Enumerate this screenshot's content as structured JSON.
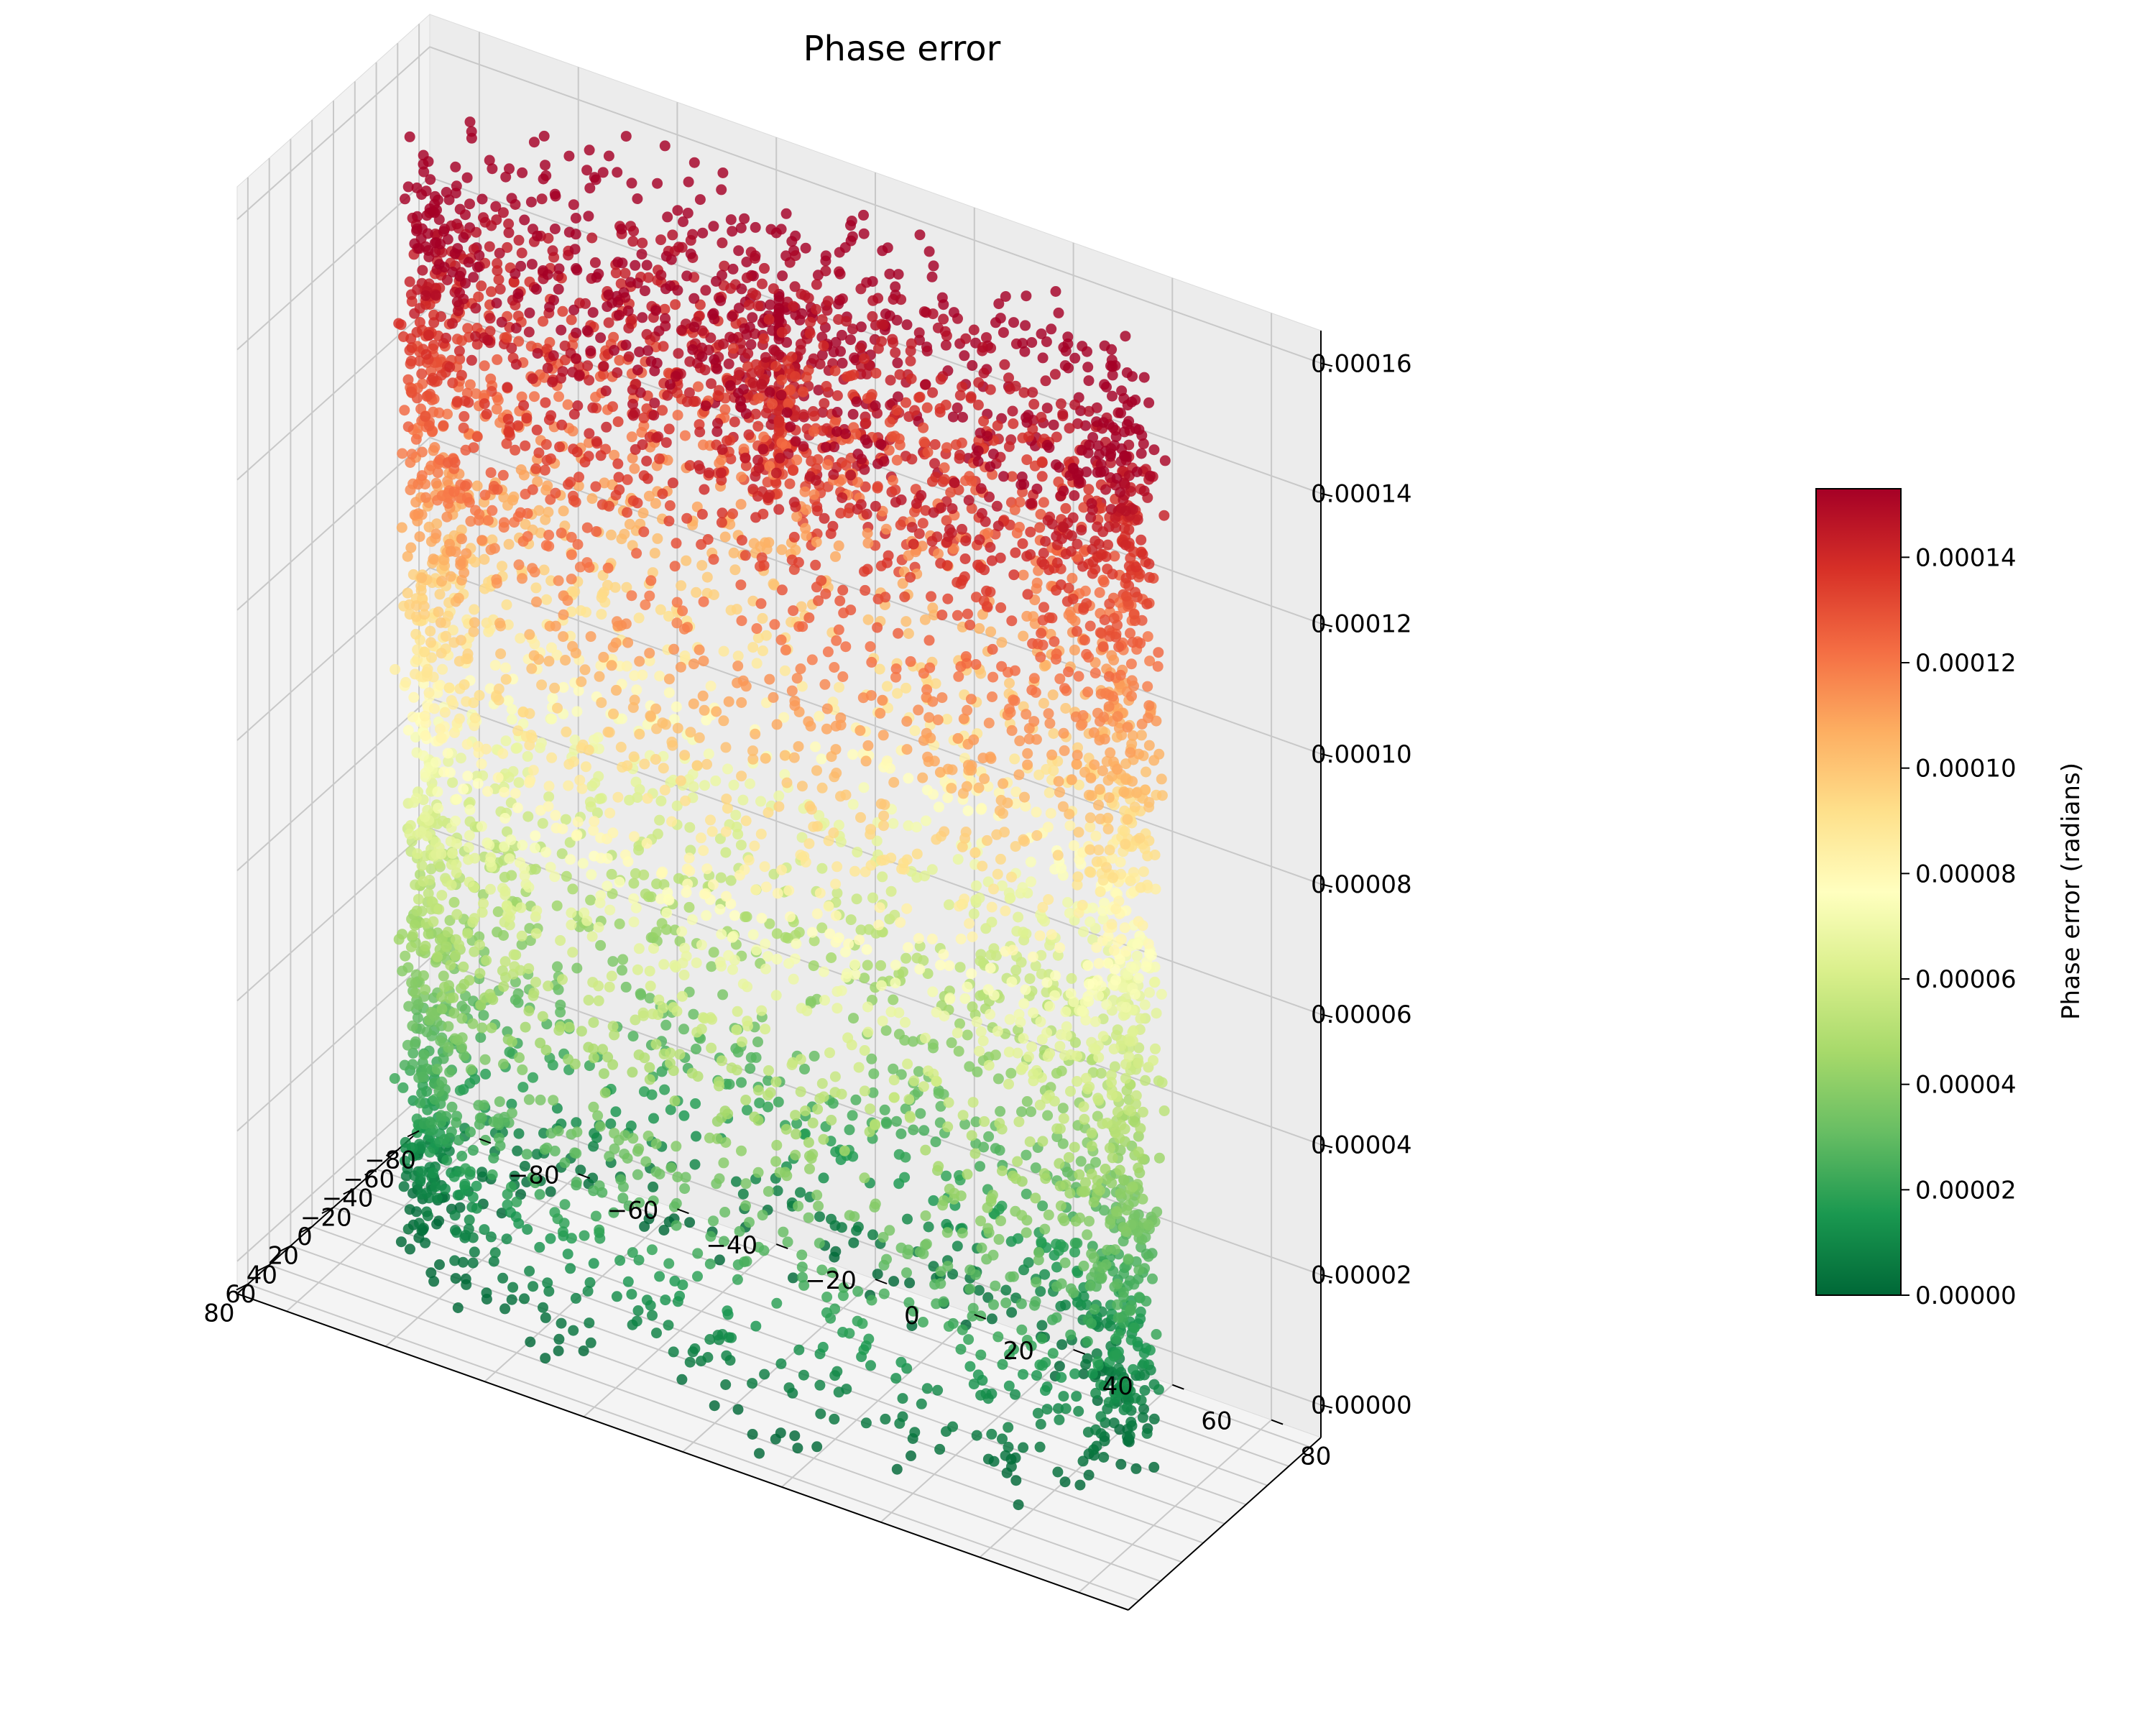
{
  "chart_data": {
    "type": "scatter",
    "subtype": "3d-scatter-cylinder",
    "title": "Phase error",
    "xlabel": "",
    "ylabel": "",
    "zlabel": "",
    "x_ticks": [
      "80",
      "60",
      "40",
      "20",
      "0",
      "−20",
      "−40",
      "−60",
      "−80"
    ],
    "y_ticks": [
      "−80",
      "−60",
      "−40",
      "−20",
      "0",
      "20",
      "40",
      "60",
      "80"
    ],
    "z_ticks": [
      "0.00000",
      "0.00002",
      "0.00004",
      "0.00006",
      "0.00008",
      "0.00010",
      "0.00012",
      "0.00014",
      "0.00016"
    ],
    "xlim": [
      -90,
      90
    ],
    "ylim": [
      -90,
      90
    ],
    "zlim": [
      -5e-06,
      0.000165
    ],
    "point_cloud": {
      "shape": "cylinder",
      "center_x": 0,
      "center_y": 0,
      "radius": 75,
      "z_min": 0.0,
      "z_max": 0.00016,
      "color_variable": "z"
    },
    "grid": true,
    "colormap": "RdYlGn_r",
    "colormap_stops": [
      "#006837",
      "#1a9850",
      "#66bd63",
      "#a6d96a",
      "#d9ef8b",
      "#ffffbf",
      "#fee08b",
      "#fdae61",
      "#f46d43",
      "#d73027",
      "#a50026"
    ],
    "colorbar": {
      "label": "Phase error (radians)",
      "range": [
        0.0,
        0.000153
      ],
      "ticks": [
        "0.00000",
        "0.00002",
        "0.00004",
        "0.00006",
        "0.00008",
        "0.00010",
        "0.00012",
        "0.00014"
      ],
      "placement": "right"
    }
  }
}
